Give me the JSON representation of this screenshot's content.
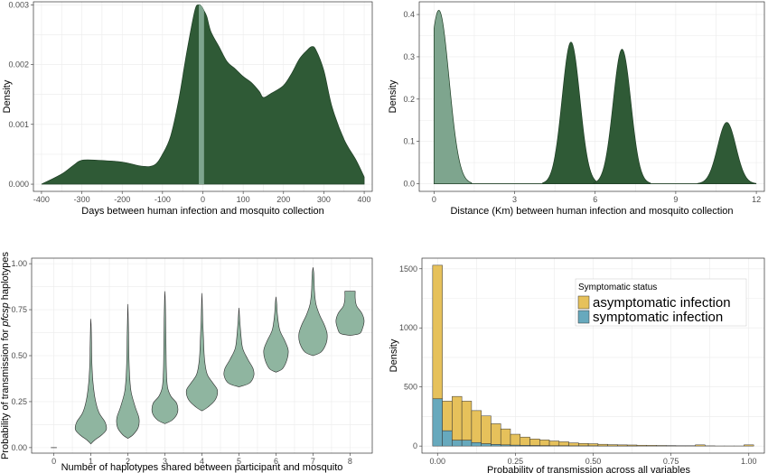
{
  "colors": {
    "dark_green": "#2f5a36",
    "light_green": "#7ea58e",
    "violin_fill": "#8fb5a0",
    "asymptomatic": "#e6c15b",
    "symptomatic": "#67a9bd"
  },
  "chart_data": [
    {
      "type": "area",
      "title": "",
      "xlabel": "Days between human infection and mosquito collection",
      "ylabel": "Density",
      "xlim": [
        -420,
        420
      ],
      "ylim": [
        -0.00012,
        0.00305
      ],
      "xticks": [
        -400,
        -300,
        -200,
        -100,
        0,
        100,
        200,
        300,
        400
      ],
      "yticks": [
        0.0,
        0.001,
        0.002,
        0.003
      ],
      "ytick_labels": [
        "0.000",
        "0.001",
        "0.002",
        "0.003"
      ],
      "grid": true,
      "series": [
        {
          "x": [
            -400,
            -350,
            -320,
            -300,
            -260,
            -200,
            -150,
            -120,
            -100,
            -80,
            -60,
            -40,
            -20,
            -10,
            -3,
            3,
            10,
            20,
            40,
            60,
            80,
            100,
            120,
            140,
            150,
            170,
            200,
            220,
            240,
            260,
            270,
            280,
            300,
            320,
            350,
            380,
            400
          ],
          "y": [
            0.0,
            0.00017,
            0.00032,
            0.0004,
            0.0004,
            0.00037,
            0.0003,
            0.00032,
            0.0005,
            0.0008,
            0.0014,
            0.0022,
            0.0029,
            0.003,
            0.00297,
            0.0029,
            0.0028,
            0.00255,
            0.0023,
            0.00205,
            0.00193,
            0.0018,
            0.0017,
            0.00155,
            0.00145,
            0.00152,
            0.00165,
            0.00185,
            0.0021,
            0.00225,
            0.0023,
            0.00225,
            0.0019,
            0.0013,
            0.00075,
            0.0004,
            0.00012
          ]
        }
      ],
      "highlight_band": [
        -10,
        3
      ]
    },
    {
      "type": "area",
      "title": "",
      "xlabel": "Distance (Km) between human infection and mosquito collection",
      "ylabel": "Density",
      "xlim": [
        -0.55,
        12.3
      ],
      "ylim": [
        -0.018,
        0.43
      ],
      "xticks": [
        0,
        3,
        6,
        9,
        12
      ],
      "yticks": [
        0.0,
        0.1,
        0.2,
        0.3,
        0.4
      ],
      "ytick_labels": [
        "0.0",
        "0.1",
        "0.2",
        "0.3",
        "0.4"
      ],
      "grid": true,
      "peaks": [
        {
          "center": 0.18,
          "height": 0.41,
          "width": 0.38,
          "shade": "light"
        },
        {
          "center": 5.1,
          "height": 0.335,
          "width": 0.33,
          "shade": "dark"
        },
        {
          "center": 7.0,
          "height": 0.318,
          "width": 0.33,
          "shade": "dark"
        },
        {
          "center": 10.9,
          "height": 0.145,
          "width": 0.34,
          "shade": "dark"
        }
      ]
    },
    {
      "type": "violin",
      "title": "",
      "xlabel": "Number of haplotypes shared between participant and mosquito",
      "ylabel_prefix": "Probability of transmission for ",
      "ylabel_italic": "pfcsp",
      "ylabel_suffix": " haplotypes",
      "xlim": [
        -0.6,
        8.6
      ],
      "ylim": [
        -0.03,
        1.03
      ],
      "xticks": [
        0,
        1,
        2,
        3,
        4,
        5,
        6,
        7,
        8
      ],
      "yticks": [
        0.0,
        0.25,
        0.5,
        0.75,
        1.0
      ],
      "ytick_labels": [
        "0.00",
        "0.25",
        "0.50",
        "0.75",
        "1.00"
      ],
      "grid": true,
      "violins": [
        {
          "x": 0,
          "profile": [
            [
              0.0,
              0.08
            ]
          ]
        },
        {
          "x": 1,
          "profile": [
            [
              0.02,
              0.0
            ],
            [
              0.04,
              0.1
            ],
            [
              0.07,
              0.3
            ],
            [
              0.1,
              0.42
            ],
            [
              0.14,
              0.38
            ],
            [
              0.19,
              0.22
            ],
            [
              0.26,
              0.12
            ],
            [
              0.35,
              0.06
            ],
            [
              0.45,
              0.03
            ],
            [
              0.55,
              0.02
            ],
            [
              0.65,
              0.01
            ],
            [
              0.7,
              0.0
            ]
          ]
        },
        {
          "x": 2,
          "profile": [
            [
              0.05,
              0.0
            ],
            [
              0.07,
              0.14
            ],
            [
              0.11,
              0.28
            ],
            [
              0.16,
              0.3
            ],
            [
              0.22,
              0.2
            ],
            [
              0.3,
              0.09
            ],
            [
              0.38,
              0.05
            ],
            [
              0.48,
              0.03
            ],
            [
              0.6,
              0.02
            ],
            [
              0.7,
              0.01
            ],
            [
              0.78,
              0.0
            ]
          ]
        },
        {
          "x": 3,
          "profile": [
            [
              0.13,
              0.0
            ],
            [
              0.15,
              0.2
            ],
            [
              0.19,
              0.34
            ],
            [
              0.24,
              0.32
            ],
            [
              0.28,
              0.16
            ],
            [
              0.33,
              0.07
            ],
            [
              0.42,
              0.04
            ],
            [
              0.55,
              0.03
            ],
            [
              0.7,
              0.02
            ],
            [
              0.8,
              0.01
            ],
            [
              0.85,
              0.0
            ]
          ]
        },
        {
          "x": 4,
          "profile": [
            [
              0.2,
              0.0
            ],
            [
              0.22,
              0.16
            ],
            [
              0.26,
              0.36
            ],
            [
              0.31,
              0.42
            ],
            [
              0.35,
              0.3
            ],
            [
              0.4,
              0.14
            ],
            [
              0.48,
              0.07
            ],
            [
              0.6,
              0.04
            ],
            [
              0.7,
              0.02
            ],
            [
              0.78,
              0.01
            ],
            [
              0.84,
              0.0
            ]
          ]
        },
        {
          "x": 5,
          "profile": [
            [
              0.33,
              0.0
            ],
            [
              0.35,
              0.28
            ],
            [
              0.39,
              0.4
            ],
            [
              0.43,
              0.38
            ],
            [
              0.48,
              0.24
            ],
            [
              0.54,
              0.1
            ],
            [
              0.62,
              0.05
            ],
            [
              0.7,
              0.02
            ],
            [
              0.76,
              0.0
            ]
          ]
        },
        {
          "x": 6,
          "profile": [
            [
              0.41,
              0.0
            ],
            [
              0.43,
              0.18
            ],
            [
              0.48,
              0.3
            ],
            [
              0.53,
              0.33
            ],
            [
              0.58,
              0.24
            ],
            [
              0.64,
              0.1
            ],
            [
              0.72,
              0.04
            ],
            [
              0.78,
              0.02
            ],
            [
              0.82,
              0.0
            ]
          ]
        },
        {
          "x": 7,
          "profile": [
            [
              0.5,
              0.0
            ],
            [
              0.52,
              0.22
            ],
            [
              0.57,
              0.36
            ],
            [
              0.62,
              0.38
            ],
            [
              0.67,
              0.3
            ],
            [
              0.72,
              0.18
            ],
            [
              0.78,
              0.08
            ],
            [
              0.85,
              0.04
            ],
            [
              0.91,
              0.03
            ],
            [
              0.95,
              0.02
            ],
            [
              0.98,
              0.0
            ]
          ]
        },
        {
          "x": 8,
          "profile": [
            [
              0.61,
              0.0
            ],
            [
              0.62,
              0.26
            ],
            [
              0.65,
              0.34
            ],
            [
              0.69,
              0.38
            ],
            [
              0.73,
              0.32
            ],
            [
              0.77,
              0.18
            ],
            [
              0.81,
              0.14
            ],
            [
              0.85,
              0.14
            ]
          ]
        }
      ]
    },
    {
      "type": "bar",
      "stacked": true,
      "title": "",
      "xlabel": "Probability of transmission across all variables",
      "ylabel": "Density",
      "xlim": [
        -0.05,
        1.05
      ],
      "ylim": [
        -60,
        1590
      ],
      "xticks": [
        0.0,
        0.25,
        0.5,
        0.75,
        1.0
      ],
      "xtick_labels": [
        "0.00",
        "0.25",
        "0.50",
        "0.75",
        "1.00"
      ],
      "yticks": [
        0,
        500,
        1000,
        1500
      ],
      "ytick_labels": [
        "0",
        "500",
        "1000",
        "1500"
      ],
      "grid": true,
      "bin_width": 0.03125,
      "bin_starts": [
        -0.015625,
        0.015625,
        0.046875,
        0.078125,
        0.109375,
        0.140625,
        0.171875,
        0.203125,
        0.234375,
        0.265625,
        0.296875,
        0.328125,
        0.359375,
        0.390625,
        0.421875,
        0.453125,
        0.484375,
        0.515625,
        0.546875,
        0.578125,
        0.609375,
        0.640625,
        0.671875,
        0.703125,
        0.734375,
        0.765625,
        0.796875,
        0.828125,
        0.859375,
        0.890625,
        0.921875,
        0.953125,
        0.984375
      ],
      "legend": {
        "title": "Symptomatic status",
        "position": "top-right"
      },
      "series": [
        {
          "name": "symptomatic infection",
          "values": [
            400,
            130,
            50,
            50,
            30,
            20,
            14,
            10,
            8,
            6,
            5,
            4,
            3,
            3,
            2,
            2,
            2,
            1,
            1,
            1,
            1,
            0,
            0,
            0,
            0,
            0,
            0,
            0,
            0,
            0,
            0,
            0,
            0
          ]
        },
        {
          "name": "asymptomatic infection",
          "values": [
            1130,
            250,
            370,
            330,
            270,
            235,
            175,
            135,
            92,
            70,
            55,
            48,
            40,
            33,
            25,
            20,
            18,
            14,
            11,
            9,
            8,
            7,
            6,
            5,
            4,
            3,
            3,
            10,
            2,
            1,
            1,
            1,
            10
          ]
        }
      ]
    }
  ]
}
